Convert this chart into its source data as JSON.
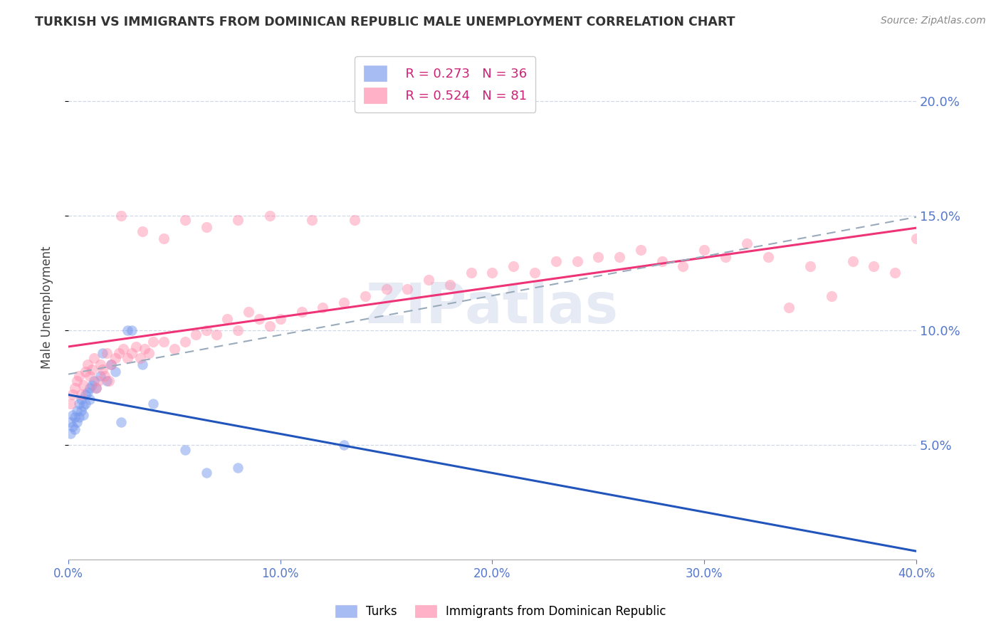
{
  "title": "TURKISH VS IMMIGRANTS FROM DOMINICAN REPUBLIC MALE UNEMPLOYMENT CORRELATION CHART",
  "source": "Source: ZipAtlas.com",
  "ylabel": "Male Unemployment",
  "xlim": [
    0.0,
    0.4
  ],
  "ylim": [
    0.0,
    0.22
  ],
  "yticks": [
    0.05,
    0.1,
    0.15,
    0.2
  ],
  "xticks": [
    0.0,
    0.1,
    0.2,
    0.3,
    0.4
  ],
  "background_color": "#ffffff",
  "grid_color": "#d0d8e8",
  "watermark": "ZIPatlas",
  "turks_color": "#7799ee",
  "dr_color": "#ff88aa",
  "R_turks": 0.273,
  "N_turks": 36,
  "R_dr": 0.524,
  "N_dr": 81,
  "turks_x": [
    0.001,
    0.001,
    0.002,
    0.002,
    0.003,
    0.003,
    0.004,
    0.004,
    0.005,
    0.005,
    0.006,
    0.006,
    0.007,
    0.007,
    0.008,
    0.008,
    0.009,
    0.01,
    0.01,
    0.011,
    0.012,
    0.013,
    0.015,
    0.016,
    0.018,
    0.02,
    0.022,
    0.025,
    0.028,
    0.03,
    0.035,
    0.04,
    0.055,
    0.065,
    0.08,
    0.13
  ],
  "turks_y": [
    0.06,
    0.055,
    0.063,
    0.058,
    0.062,
    0.057,
    0.065,
    0.06,
    0.068,
    0.062,
    0.07,
    0.065,
    0.067,
    0.063,
    0.072,
    0.068,
    0.073,
    0.075,
    0.07,
    0.076,
    0.078,
    0.075,
    0.08,
    0.09,
    0.078,
    0.085,
    0.082,
    0.06,
    0.1,
    0.1,
    0.085,
    0.068,
    0.048,
    0.038,
    0.04,
    0.05
  ],
  "dr_x": [
    0.001,
    0.002,
    0.003,
    0.004,
    0.005,
    0.006,
    0.007,
    0.008,
    0.009,
    0.01,
    0.011,
    0.012,
    0.013,
    0.014,
    0.015,
    0.016,
    0.017,
    0.018,
    0.019,
    0.02,
    0.022,
    0.024,
    0.026,
    0.028,
    0.03,
    0.032,
    0.034,
    0.036,
    0.038,
    0.04,
    0.045,
    0.05,
    0.055,
    0.06,
    0.065,
    0.07,
    0.075,
    0.08,
    0.085,
    0.09,
    0.095,
    0.1,
    0.11,
    0.12,
    0.13,
    0.14,
    0.15,
    0.16,
    0.17,
    0.18,
    0.19,
    0.2,
    0.21,
    0.22,
    0.23,
    0.24,
    0.25,
    0.26,
    0.27,
    0.28,
    0.29,
    0.3,
    0.31,
    0.32,
    0.33,
    0.34,
    0.35,
    0.36,
    0.37,
    0.38,
    0.39,
    0.4,
    0.025,
    0.035,
    0.045,
    0.055,
    0.065,
    0.08,
    0.095,
    0.115,
    0.135
  ],
  "dr_y": [
    0.068,
    0.072,
    0.075,
    0.078,
    0.08,
    0.072,
    0.076,
    0.082,
    0.085,
    0.08,
    0.083,
    0.088,
    0.075,
    0.078,
    0.085,
    0.083,
    0.08,
    0.09,
    0.078,
    0.085,
    0.088,
    0.09,
    0.092,
    0.088,
    0.09,
    0.093,
    0.088,
    0.092,
    0.09,
    0.095,
    0.095,
    0.092,
    0.095,
    0.098,
    0.1,
    0.098,
    0.105,
    0.1,
    0.108,
    0.105,
    0.102,
    0.105,
    0.108,
    0.11,
    0.112,
    0.115,
    0.118,
    0.118,
    0.122,
    0.12,
    0.125,
    0.125,
    0.128,
    0.125,
    0.13,
    0.13,
    0.132,
    0.132,
    0.135,
    0.13,
    0.128,
    0.135,
    0.132,
    0.138,
    0.132,
    0.11,
    0.128,
    0.115,
    0.13,
    0.128,
    0.125,
    0.14,
    0.15,
    0.143,
    0.14,
    0.148,
    0.145,
    0.148,
    0.15,
    0.148,
    0.148
  ]
}
